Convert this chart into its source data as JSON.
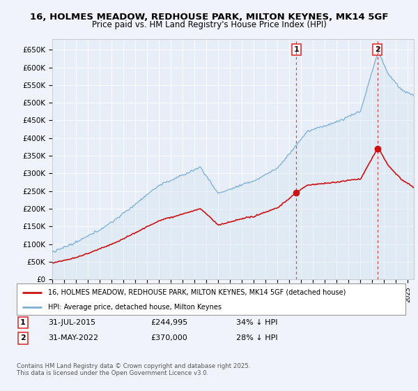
{
  "title_line1": "16, HOLMES MEADOW, REDHOUSE PARK, MILTON KEYNES, MK14 5GF",
  "title_line2": "Price paid vs. HM Land Registry's House Price Index (HPI)",
  "xlim_start": 1995.0,
  "xlim_end": 2025.5,
  "ylim": [
    0,
    680000
  ],
  "yticks": [
    0,
    50000,
    100000,
    150000,
    200000,
    250000,
    300000,
    350000,
    400000,
    450000,
    500000,
    550000,
    600000,
    650000
  ],
  "ytick_labels": [
    "£0",
    "£50K",
    "£100K",
    "£150K",
    "£200K",
    "£250K",
    "£300K",
    "£350K",
    "£400K",
    "£450K",
    "£500K",
    "£550K",
    "£600K",
    "£650K"
  ],
  "sale1_year": 2015.58,
  "sale1_price": 244995,
  "sale1_date": "31-JUL-2015",
  "sale1_pct": "34% ↓ HPI",
  "sale2_year": 2022.42,
  "sale2_price": 370000,
  "sale2_date": "31-MAY-2022",
  "sale2_pct": "28% ↓ HPI",
  "hpi_color": "#7bafd4",
  "hpi_fill_color": "#d0e4f0",
  "price_color": "#cc1111",
  "dashed_color": "#dd3333",
  "legend_property": "16, HOLMES MEADOW, REDHOUSE PARK, MILTON KEYNES, MK14 5GF (detached house)",
  "legend_hpi": "HPI: Average price, detached house, Milton Keynes",
  "footnote": "Contains HM Land Registry data © Crown copyright and database right 2025.\nThis data is licensed under the Open Government Licence v3.0.",
  "background_color": "#f0f4fa",
  "plot_bg_color": "#e8eef8"
}
